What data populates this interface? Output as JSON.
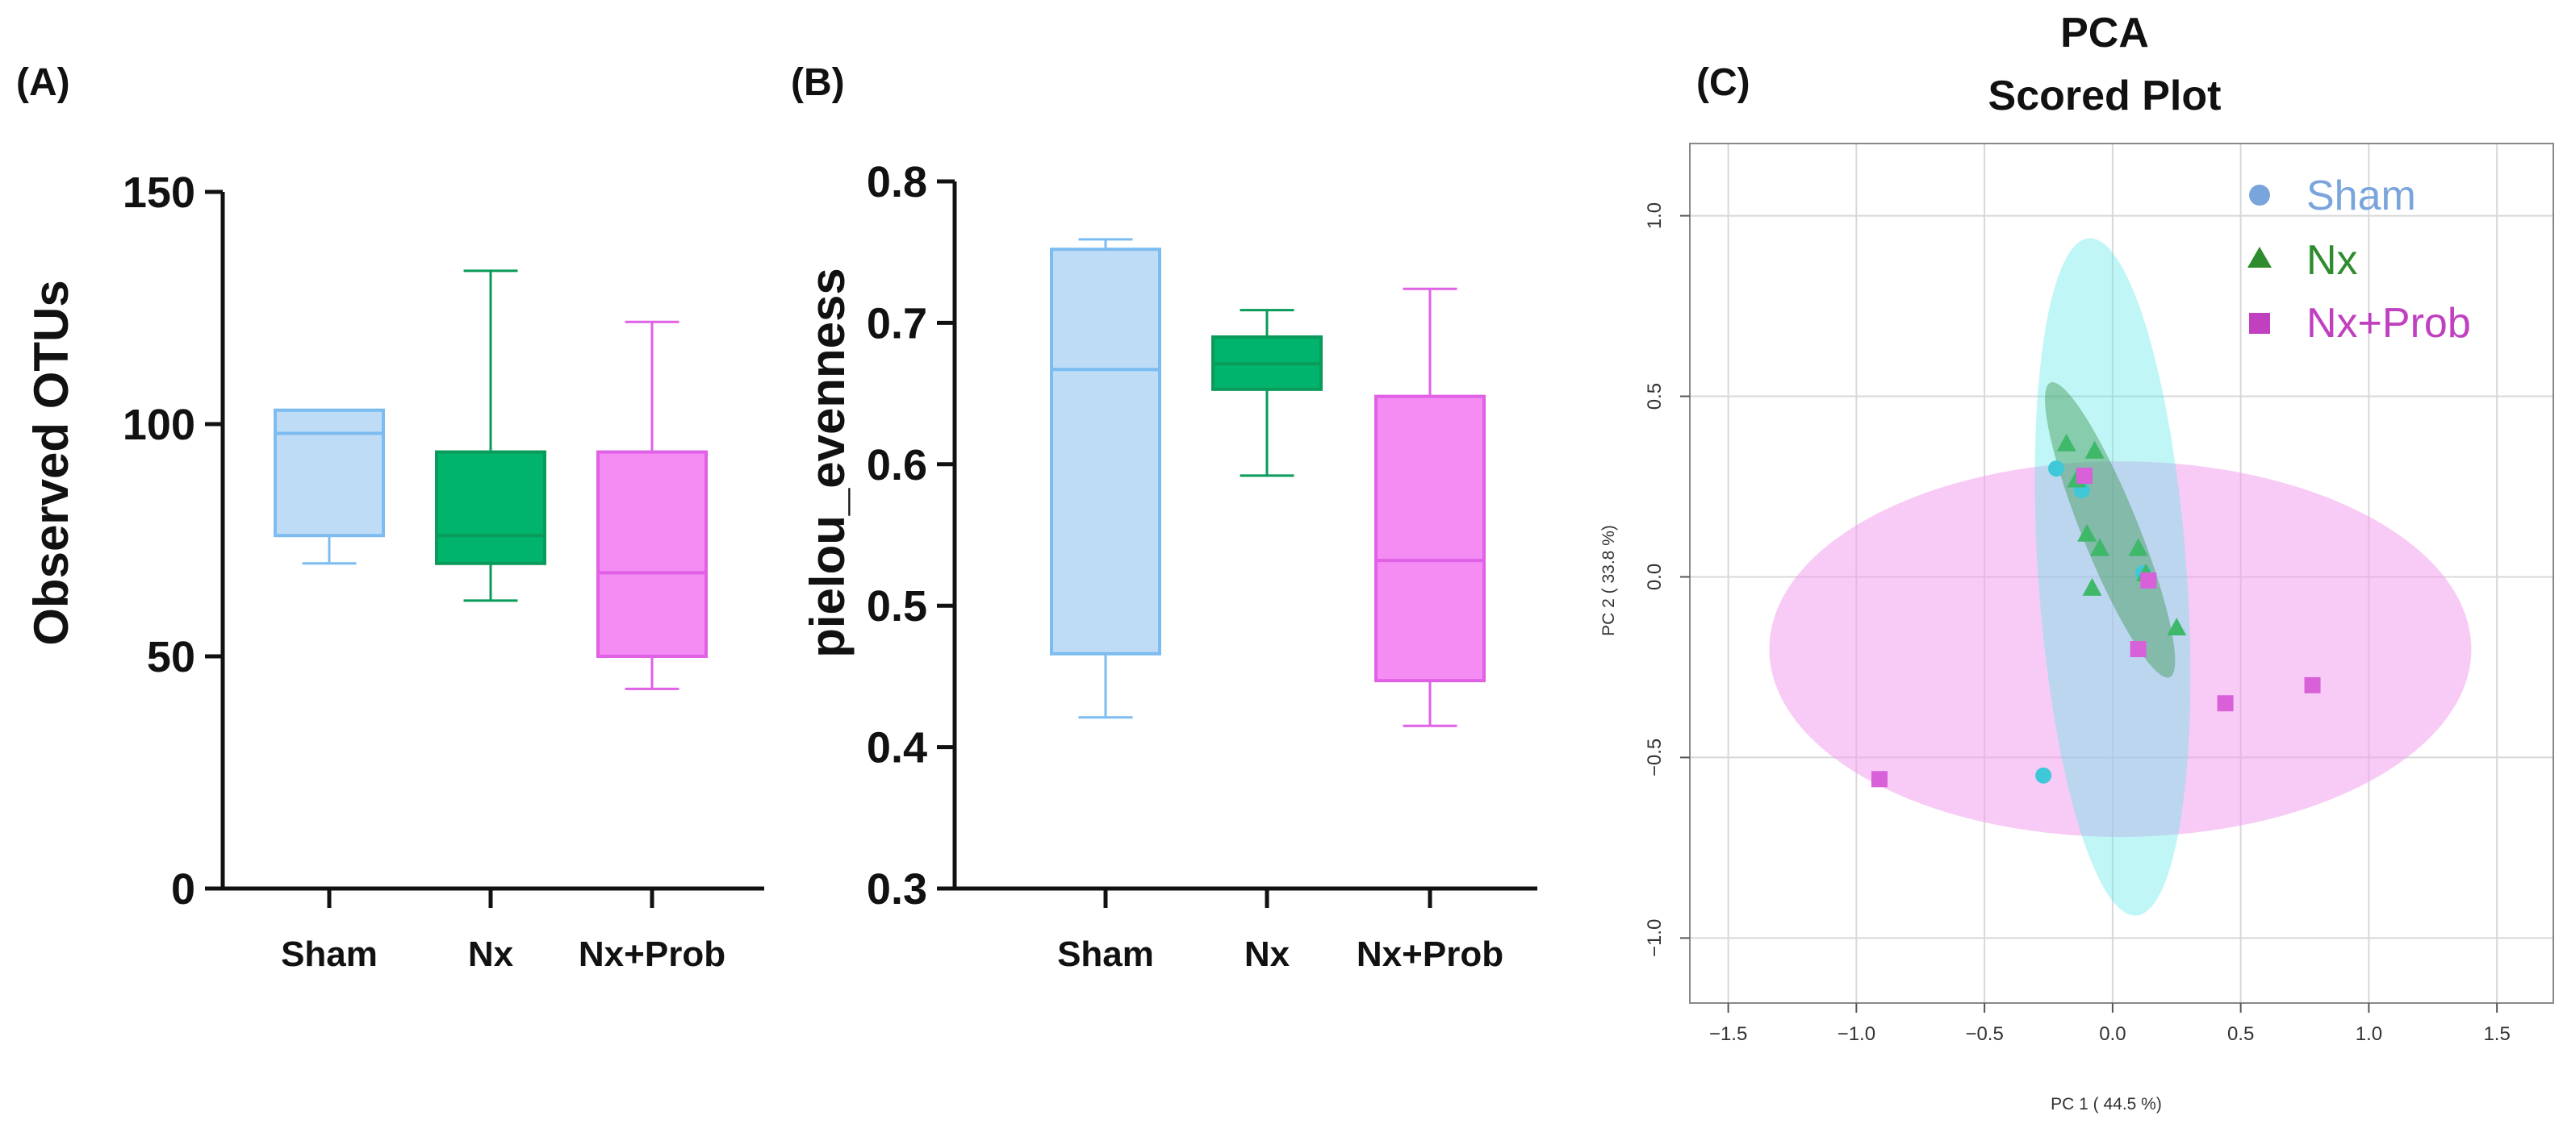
{
  "panels": {
    "a": {
      "label": "(A)"
    },
    "b": {
      "label": "(B)"
    },
    "c": {
      "label": "(C)"
    }
  },
  "colors": {
    "sham_fill": "#bfdcf6",
    "sham_stroke": "#7cbcf0",
    "nx_fill": "#00b46e",
    "nx_stroke": "#0a9a5a",
    "prob_fill": "#f48cf4",
    "prob_stroke": "#e060e6",
    "ell_sham": "#5be8e8",
    "ell_nx": "#3f9a55",
    "ell_prob": "#f0a0ee",
    "pt_sham": "#3ec8d8",
    "pt_nx": "#3fb86a",
    "pt_prob": "#d860d8",
    "leg_sham": "#7aa4dc",
    "leg_nx": "#2e8b2e",
    "leg_prob": "#c040c0"
  },
  "chart_data": [
    {
      "type": "box",
      "panel": "A",
      "ylabel": "Observed OTUs",
      "ylim": [
        0,
        150
      ],
      "yticks": [
        "0",
        "50",
        "100",
        "150"
      ],
      "categories": [
        "Sham",
        "Nx",
        "Nx+Prob"
      ],
      "boxes": [
        {
          "name": "Sham",
          "min": 70,
          "q1": 76,
          "median": 98,
          "q3": 103,
          "max": 103
        },
        {
          "name": "Nx",
          "min": 62,
          "q1": 70,
          "median": 76,
          "q3": 94,
          "max": 133
        },
        {
          "name": "Nx+Prob",
          "min": 43,
          "q1": 50,
          "median": 68,
          "q3": 94,
          "max": 122
        }
      ]
    },
    {
      "type": "box",
      "panel": "B",
      "ylabel": "pielou_evenness",
      "ylim": [
        0.3,
        0.8
      ],
      "yticks": [
        "0.3",
        "0.4",
        "0.5",
        "0.6",
        "0.7",
        "0.8"
      ],
      "categories": [
        "Sham",
        "Nx",
        "Nx+Prob"
      ],
      "boxes": [
        {
          "name": "Sham",
          "min": 0.421,
          "q1": 0.466,
          "median": 0.667,
          "q3": 0.752,
          "max": 0.759
        },
        {
          "name": "Nx",
          "min": 0.592,
          "q1": 0.653,
          "median": 0.671,
          "q3": 0.69,
          "max": 0.709
        },
        {
          "name": "Nx+Prob",
          "min": 0.415,
          "q1": 0.447,
          "median": 0.532,
          "q3": 0.648,
          "max": 0.724
        }
      ]
    },
    {
      "type": "scatter",
      "panel": "C",
      "title": [
        "PCA",
        "Scored Plot"
      ],
      "xlabel": "PC 1 ( 44.5 %)",
      "ylabel": "PC 2 ( 33.8 %)",
      "xlim": [
        -1.65,
        1.72
      ],
      "ylim": [
        -1.18,
        1.2
      ],
      "xticks": [
        -1.5,
        -1.0,
        -0.5,
        0.0,
        0.5,
        1.0,
        1.5
      ],
      "xtick_labels": [
        "−1.5",
        "−1.0",
        "−0.5",
        "0.0",
        "0.5",
        "1.0",
        "1.5"
      ],
      "yticks": [
        -1.0,
        -0.5,
        0.0,
        0.5,
        1.0
      ],
      "ytick_labels": [
        "−1.0",
        "−0.5",
        "0.0",
        "0.5",
        "1.0"
      ],
      "grid": true,
      "legend_position": "top-right",
      "series": [
        {
          "name": "Sham",
          "marker": "circle",
          "points": [
            [
              -0.22,
              0.3
            ],
            [
              -0.12,
              0.24
            ],
            [
              0.12,
              0.01
            ],
            [
              -0.27,
              -0.55
            ]
          ],
          "ellipse": {
            "cx": 0.0,
            "cy": 0.0,
            "rx": 0.29,
            "ry": 0.94,
            "angle": -4
          }
        },
        {
          "name": "Nx",
          "marker": "triangle",
          "points": [
            [
              -0.18,
              0.37
            ],
            [
              -0.14,
              0.27
            ],
            [
              -0.07,
              0.35
            ],
            [
              -0.1,
              0.12
            ],
            [
              -0.05,
              0.08
            ],
            [
              -0.08,
              -0.03
            ],
            [
              0.1,
              0.08
            ],
            [
              0.13,
              0.01
            ],
            [
              0.25,
              -0.14
            ]
          ],
          "ellipse": {
            "cx": -0.01,
            "cy": 0.13,
            "rx": 0.11,
            "ry": 0.44,
            "angle": -22
          }
        },
        {
          "name": "Nx+Prob",
          "marker": "square",
          "points": [
            [
              -0.11,
              0.28
            ],
            [
              0.14,
              -0.01
            ],
            [
              0.1,
              -0.2
            ],
            [
              0.44,
              -0.35
            ],
            [
              0.78,
              -0.3
            ],
            [
              -0.91,
              -0.56
            ]
          ],
          "ellipse": {
            "cx": 0.03,
            "cy": -0.2,
            "rx": 1.37,
            "ry": 0.52,
            "angle": 0
          }
        }
      ]
    }
  ]
}
